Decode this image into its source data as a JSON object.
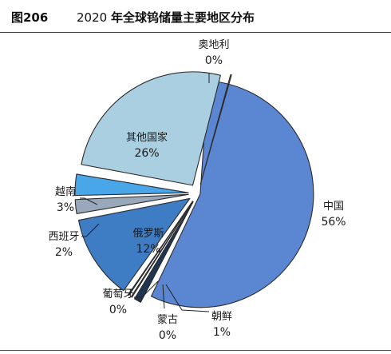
{
  "figure": {
    "number": "图206",
    "year": "2020",
    "title": "年全球钨储量主要地区分布"
  },
  "chart_data": {
    "type": "pie",
    "title": "2020 年全球钨储量主要地区分布",
    "slices": [
      {
        "name": "中国",
        "value": 56,
        "label": "56%",
        "color": "#5b86d1"
      },
      {
        "name": "朝鲜",
        "value": 1,
        "label": "1%",
        "color": "#1f3550"
      },
      {
        "name": "蒙古",
        "value": 0,
        "label": "0%",
        "color": "#46607c"
      },
      {
        "name": "葡萄牙",
        "value": 0,
        "label": "0%",
        "color": "#6f86a0"
      },
      {
        "name": "俄罗斯",
        "value": 12,
        "label": "12%",
        "color": "#3e7cc4"
      },
      {
        "name": "西班牙",
        "value": 2,
        "label": "2%",
        "color": "#9aa8bc"
      },
      {
        "name": "越南",
        "value": 3,
        "label": "3%",
        "color": "#49a6e8"
      },
      {
        "name": "其他国家",
        "value": 26,
        "label": "26%",
        "color": "#a9cfe0"
      },
      {
        "name": "奥地利",
        "value": 0,
        "label": "0%",
        "color": "#d8e6ef"
      }
    ]
  }
}
